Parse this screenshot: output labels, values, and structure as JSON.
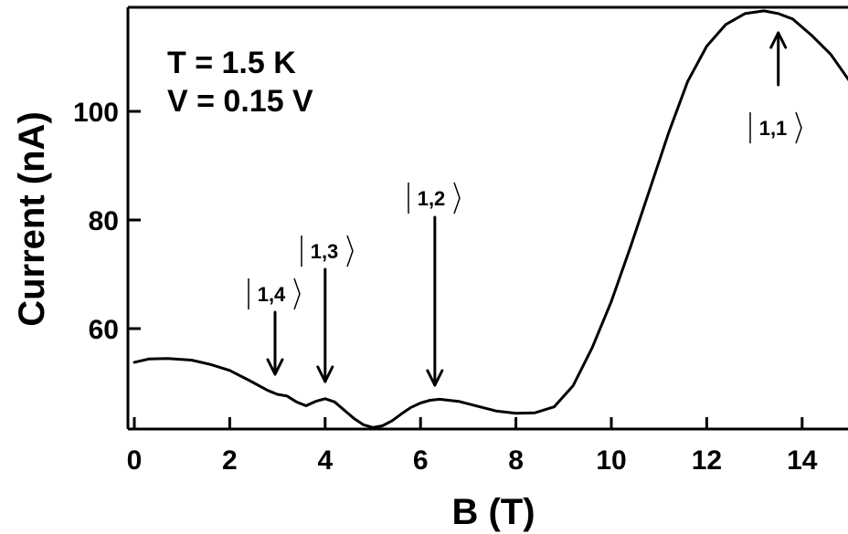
{
  "chart_data": {
    "type": "line",
    "xlabel": "B (T)",
    "ylabel": "Current (nA)",
    "xlim": [
      -0.1,
      15
    ],
    "ylim": [
      41,
      119
    ],
    "x_ticks": [
      0,
      2,
      4,
      6,
      8,
      10,
      12,
      14
    ],
    "y_ticks": [
      60,
      80,
      100
    ],
    "annotations_text": [
      "T = 1.5 K",
      "V = 0.15 V"
    ],
    "series": [
      {
        "x": [
          0,
          0.3,
          0.7,
          1.2,
          1.6,
          2.0,
          2.4,
          2.8,
          3.0,
          3.2,
          3.4,
          3.6,
          3.8,
          4.0,
          4.2,
          4.4,
          4.6,
          4.8,
          5.0,
          5.2,
          5.4,
          5.6,
          5.8,
          6.0,
          6.2,
          6.4,
          6.8,
          7.2,
          7.6,
          8.0,
          8.4,
          8.8,
          9.2,
          9.6,
          10.0,
          10.4,
          10.8,
          11.2,
          11.6,
          12.0,
          12.4,
          12.8,
          13.2,
          13.5,
          13.8,
          14.2,
          14.6,
          15.0
        ],
        "y": [
          53.8,
          54.4,
          54.5,
          54.2,
          53.4,
          52.3,
          50.5,
          48.6,
          47.9,
          47.6,
          46.5,
          45.8,
          46.6,
          47.1,
          46.5,
          45.0,
          43.5,
          42.3,
          41.8,
          42.1,
          43.0,
          44.3,
          45.5,
          46.3,
          46.8,
          47.0,
          46.6,
          45.7,
          44.8,
          44.4,
          44.5,
          45.6,
          49.5,
          56.5,
          65.0,
          75.0,
          85.5,
          96.0,
          105.5,
          112.0,
          116.0,
          118.0,
          118.5,
          118.0,
          117.0,
          114.0,
          110.5,
          105.5
        ]
      }
    ],
    "state_markers": [
      {
        "label": "1,4",
        "x": 2.95
      },
      {
        "label": "1,3",
        "x": 4.0
      },
      {
        "label": "1,2",
        "x": 6.3
      },
      {
        "label": "1,1",
        "x": 13.5
      }
    ]
  }
}
